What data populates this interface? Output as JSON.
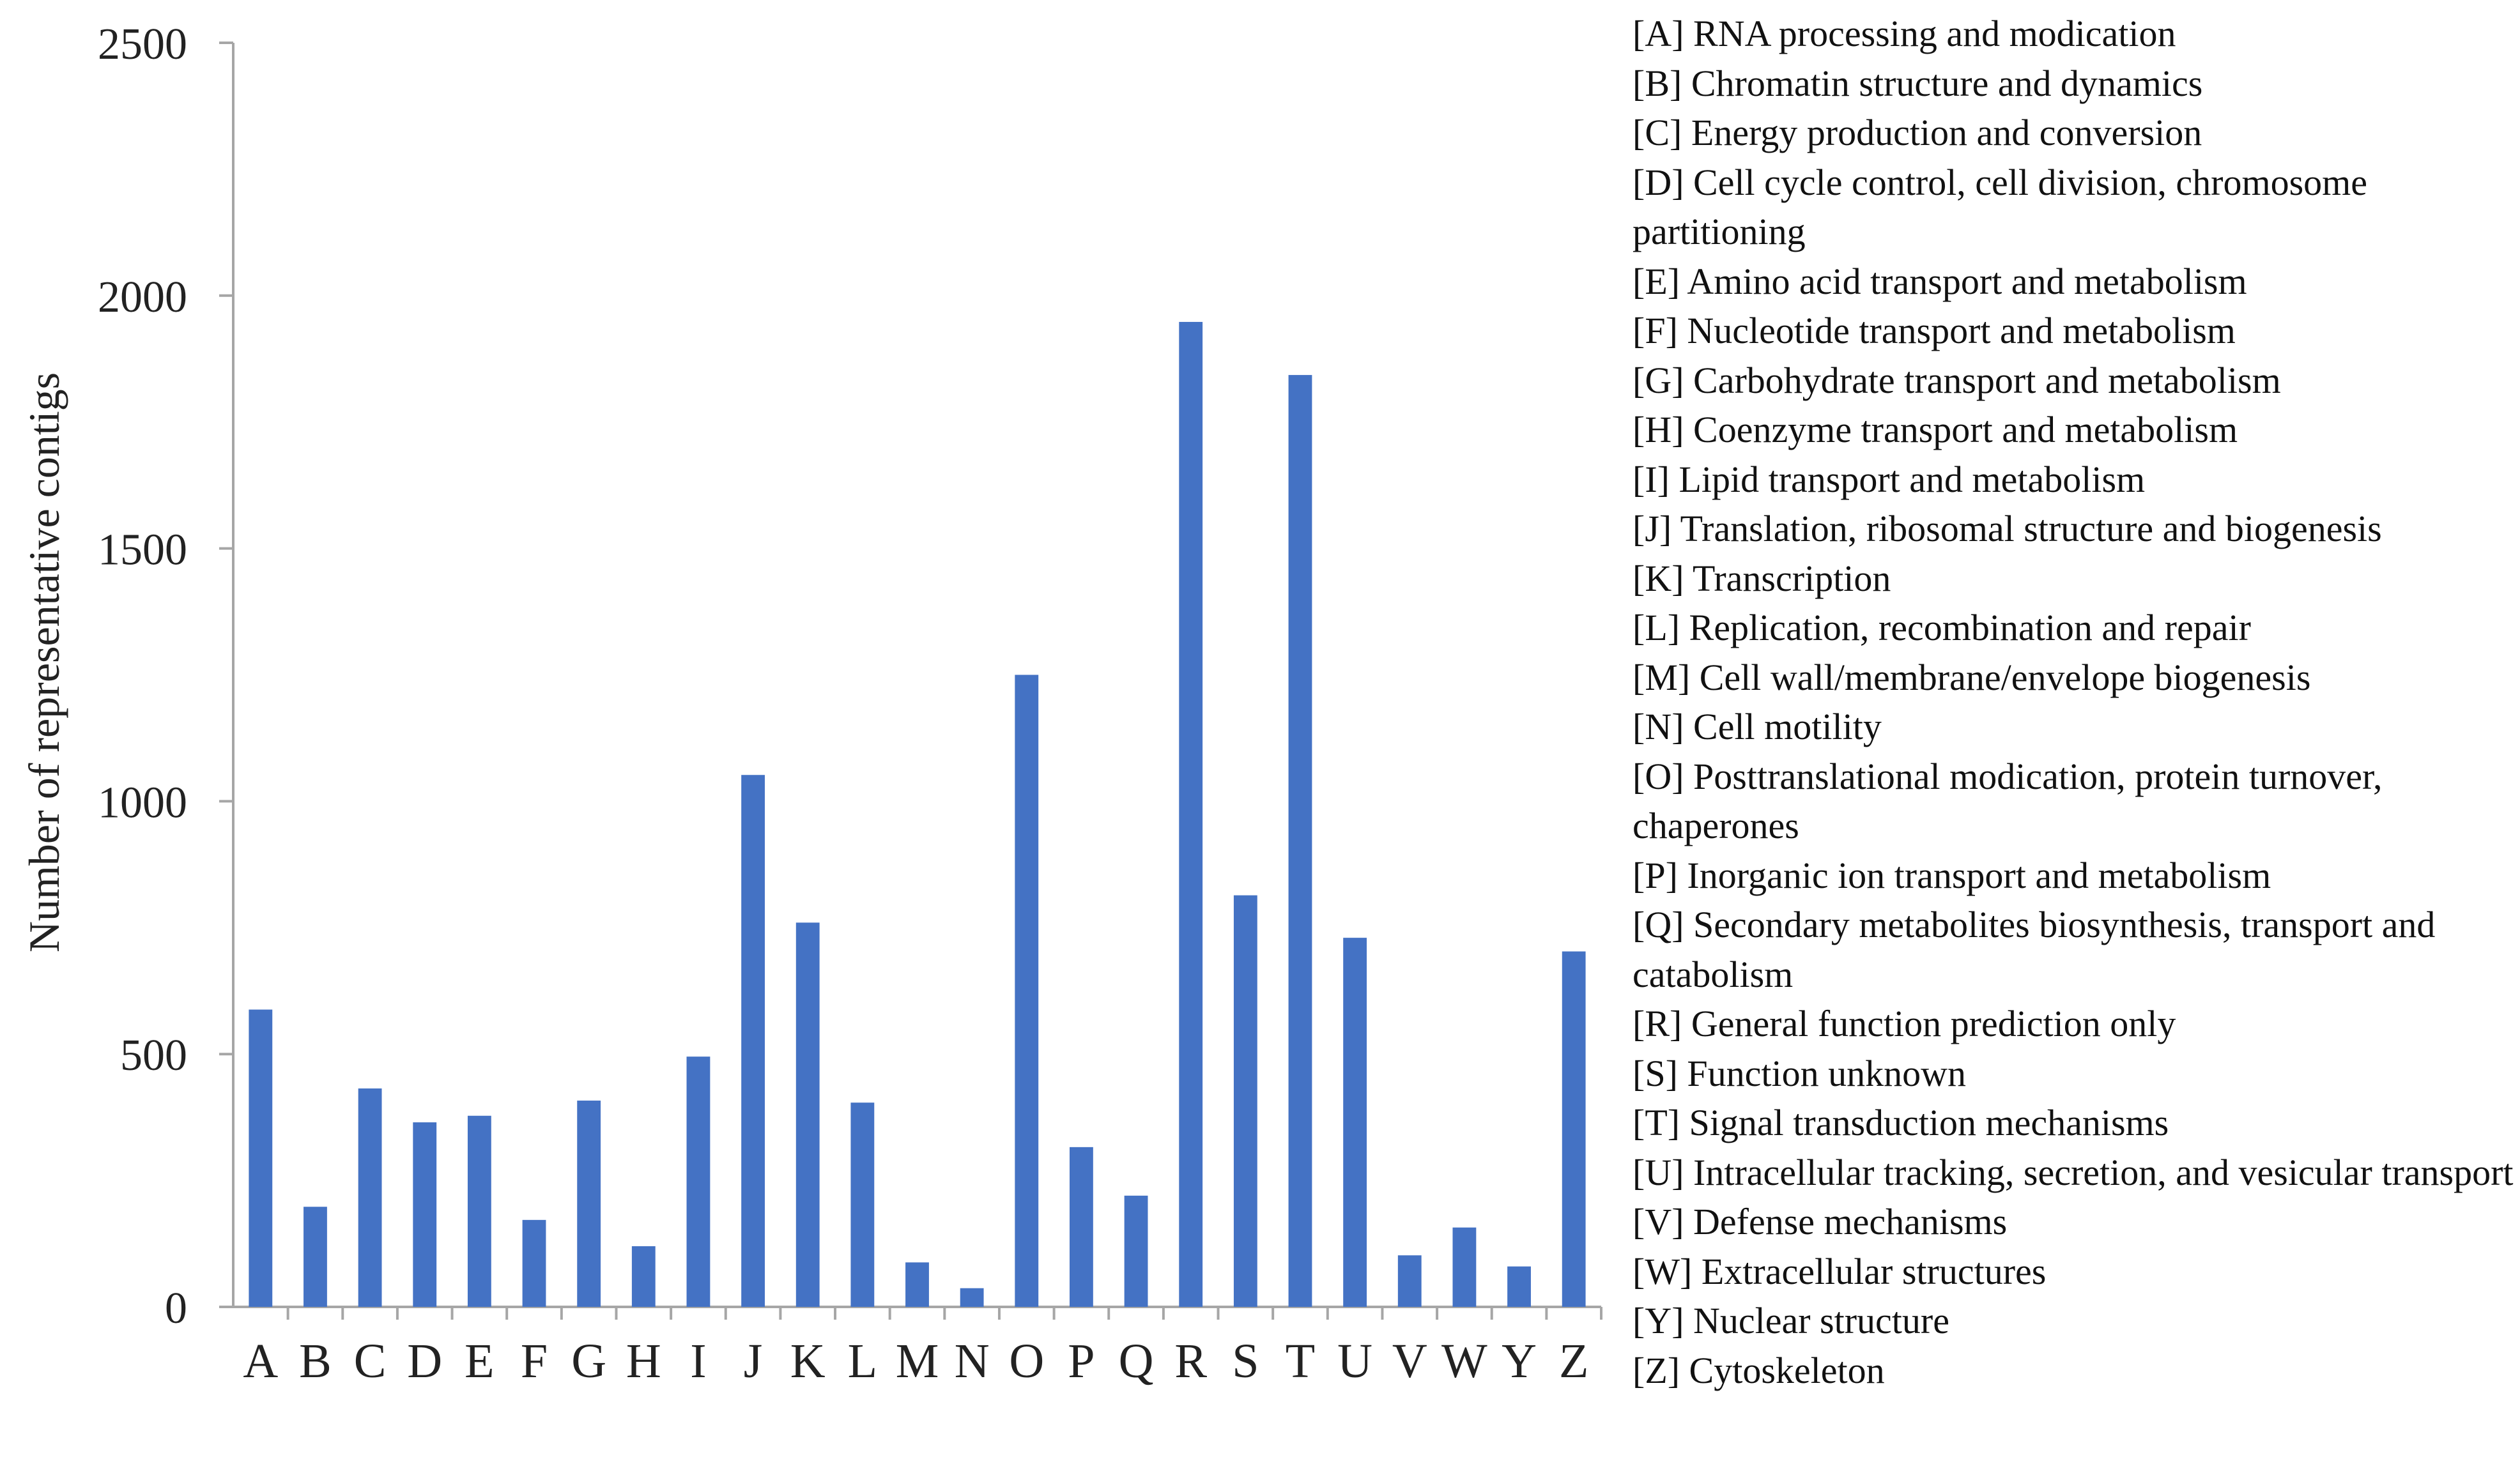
{
  "chart_data": {
    "type": "bar",
    "title": "",
    "xlabel": "",
    "ylabel": "Number of representative contigs",
    "ylim": [
      0,
      2500
    ],
    "yticks": [
      0,
      500,
      1000,
      1500,
      2000,
      2500
    ],
    "grid": false,
    "legend_position": "right",
    "bar_color": "#4472C4",
    "axis_color": "#A6A6A6",
    "categories": [
      "A",
      "B",
      "C",
      "D",
      "E",
      "F",
      "G",
      "H",
      "I",
      "J",
      "K",
      "L",
      "M",
      "N",
      "O",
      "P",
      "Q",
      "R",
      "S",
      "T",
      "U",
      "V",
      "W",
      "Y",
      "Z"
    ],
    "values": [
      588,
      198,
      432,
      365,
      378,
      172,
      408,
      120,
      495,
      1052,
      760,
      404,
      88,
      37,
      1250,
      316,
      220,
      1948,
      814,
      1843,
      730,
      102,
      157,
      80,
      703
    ],
    "legend_entries": [
      "[A] RNA processing and modication",
      "[B] Chromatin structure and dynamics",
      "[C] Energy production and conversion",
      "[D] Cell cycle control, cell division, chromosome partitioning",
      "[E] Amino acid transport and metabolism",
      "[F] Nucleotide transport and metabolism",
      "[G] Carbohydrate transport and metabolism",
      "[H] Coenzyme transport and metabolism",
      "[I] Lipid transport and metabolism",
      "[J] Translation, ribosomal structure and biogenesis",
      "[K] Transcription",
      "[L] Replication, recombination and repair",
      "[M] Cell wall/membrane/envelope biogenesis",
      "[N] Cell motility",
      "[O] Posttranslational modication, protein turnover, chaperones",
      "[P] Inorganic ion transport and metabolism",
      "[Q] Secondary metabolites biosynthesis, transport and catabolism",
      "[R] General function prediction only",
      "[S] Function unknown",
      "[T] Signal transduction mechanisms",
      "[U] Intracellular tracking, secretion, and vesicular transport",
      "[V] Defense mechanisms",
      "[W] Extracellular structures",
      "[Y] Nuclear structure",
      "[Z] Cytoskeleton"
    ]
  }
}
